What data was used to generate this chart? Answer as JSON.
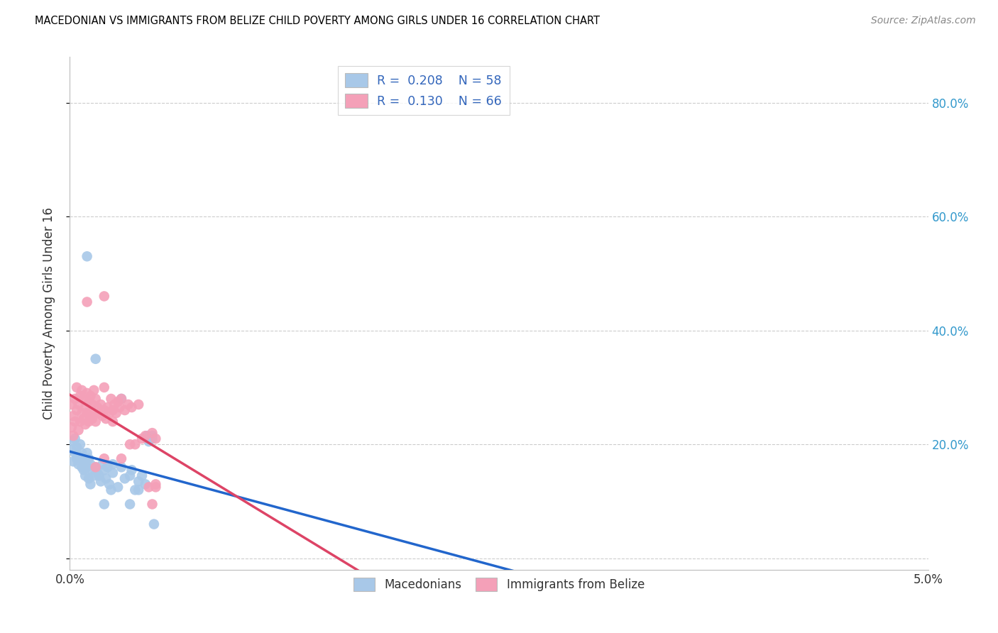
{
  "title": "MACEDONIAN VS IMMIGRANTS FROM BELIZE CHILD POVERTY AMONG GIRLS UNDER 16 CORRELATION CHART",
  "source": "Source: ZipAtlas.com",
  "ylabel": "Child Poverty Among Girls Under 16",
  "xlim": [
    0.0,
    0.05
  ],
  "ylim": [
    -0.02,
    0.88
  ],
  "ytick_positions": [
    0.0,
    0.2,
    0.4,
    0.6,
    0.8
  ],
  "ytick_labels_right": [
    "",
    "20.0%",
    "40.0%",
    "60.0%",
    "80.0%"
  ],
  "macedonian_R": 0.208,
  "macedonian_N": 58,
  "belize_R": 0.13,
  "belize_N": 66,
  "macedonian_color": "#a8c8e8",
  "belize_color": "#f4a0b8",
  "macedonian_line_color": "#2266cc",
  "belize_line_color": "#dd4466",
  "background_color": "#ffffff",
  "grid_color": "#cccccc",
  "mac_x": [
    0.0001,
    0.0002,
    0.0002,
    0.0003,
    0.0003,
    0.0004,
    0.0004,
    0.0005,
    0.0005,
    0.0006,
    0.0006,
    0.0007,
    0.0007,
    0.0008,
    0.0008,
    0.0009,
    0.0009,
    0.001,
    0.001,
    0.0011,
    0.0011,
    0.0012,
    0.0012,
    0.0013,
    0.0014,
    0.0015,
    0.0016,
    0.0017,
    0.0018,
    0.0019,
    0.002,
    0.0021,
    0.0022,
    0.0023,
    0.0024,
    0.0025,
    0.0028,
    0.003,
    0.0032,
    0.0035,
    0.0036,
    0.0038,
    0.004,
    0.0042,
    0.0044,
    0.0045,
    0.0046,
    0.0048,
    0.0048,
    0.0049,
    0.001,
    0.0015,
    0.002,
    0.0025,
    0.003,
    0.0035,
    0.004,
    0.0045
  ],
  "mac_y": [
    0.19,
    0.17,
    0.205,
    0.185,
    0.21,
    0.195,
    0.175,
    0.18,
    0.165,
    0.2,
    0.175,
    0.185,
    0.16,
    0.175,
    0.155,
    0.17,
    0.145,
    0.185,
    0.16,
    0.175,
    0.14,
    0.165,
    0.13,
    0.155,
    0.145,
    0.16,
    0.15,
    0.145,
    0.135,
    0.165,
    0.155,
    0.14,
    0.16,
    0.13,
    0.12,
    0.15,
    0.125,
    0.16,
    0.14,
    0.145,
    0.155,
    0.12,
    0.135,
    0.145,
    0.13,
    0.215,
    0.205,
    0.215,
    0.21,
    0.06,
    0.53,
    0.35,
    0.095,
    0.165,
    0.28,
    0.095,
    0.12,
    0.21
  ],
  "bel_x": [
    0.0001,
    0.0001,
    0.0002,
    0.0002,
    0.0003,
    0.0003,
    0.0004,
    0.0004,
    0.0005,
    0.0005,
    0.0006,
    0.0006,
    0.0007,
    0.0007,
    0.0008,
    0.0008,
    0.0009,
    0.0009,
    0.001,
    0.001,
    0.0011,
    0.0011,
    0.0012,
    0.0012,
    0.0013,
    0.0013,
    0.0014,
    0.0014,
    0.0015,
    0.0015,
    0.0016,
    0.0017,
    0.0018,
    0.0019,
    0.002,
    0.002,
    0.0021,
    0.0022,
    0.0023,
    0.0024,
    0.0025,
    0.0026,
    0.0027,
    0.0028,
    0.0029,
    0.003,
    0.0032,
    0.0034,
    0.0036,
    0.0038,
    0.004,
    0.001,
    0.0015,
    0.002,
    0.0025,
    0.003,
    0.0035,
    0.0042,
    0.0044,
    0.0046,
    0.0048,
    0.005,
    0.0048,
    0.005,
    0.005,
    0.002
  ],
  "bel_y": [
    0.23,
    0.27,
    0.215,
    0.25,
    0.24,
    0.28,
    0.26,
    0.3,
    0.225,
    0.27,
    0.24,
    0.285,
    0.255,
    0.295,
    0.245,
    0.28,
    0.235,
    0.265,
    0.255,
    0.29,
    0.24,
    0.275,
    0.25,
    0.285,
    0.245,
    0.27,
    0.255,
    0.295,
    0.24,
    0.28,
    0.265,
    0.255,
    0.27,
    0.25,
    0.26,
    0.3,
    0.245,
    0.265,
    0.255,
    0.28,
    0.26,
    0.27,
    0.255,
    0.275,
    0.265,
    0.28,
    0.26,
    0.27,
    0.265,
    0.2,
    0.27,
    0.45,
    0.16,
    0.175,
    0.24,
    0.175,
    0.2,
    0.21,
    0.215,
    0.125,
    0.22,
    0.21,
    0.095,
    0.125,
    0.13,
    0.46
  ]
}
